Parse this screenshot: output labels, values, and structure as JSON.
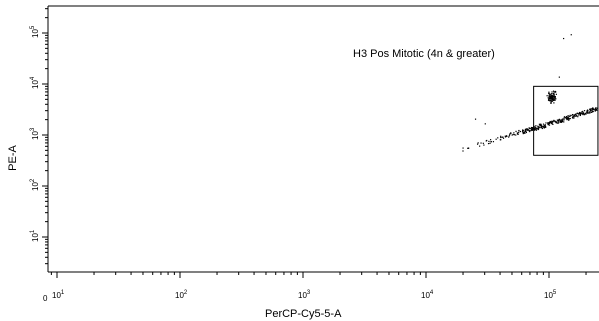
{
  "chart_data": {
    "type": "scatter",
    "xlabel": "PerCP-Cy5-5-A",
    "ylabel": "PE-A",
    "x_scale": "log",
    "y_scale": "log",
    "xlim": [
      1,
      250000
    ],
    "ylim": [
      3,
      250000
    ],
    "x_origin_label": "0",
    "x_ticks": [
      {
        "label": "10",
        "exp": "1"
      },
      {
        "label": "10",
        "exp": "2"
      },
      {
        "label": "10",
        "exp": "3"
      },
      {
        "label": "10",
        "exp": "4"
      },
      {
        "label": "10",
        "exp": "5"
      }
    ],
    "y_ticks": [
      {
        "label": "10",
        "exp": "1"
      },
      {
        "label": "10",
        "exp": "2"
      },
      {
        "label": "10",
        "exp": "3"
      },
      {
        "label": "10",
        "exp": "4"
      },
      {
        "label": "10",
        "exp": "5"
      }
    ],
    "gate": {
      "label": "H3 Pos Mitotic (4n & greater)",
      "x_range": [
        75000,
        250000
      ],
      "y_range": [
        400,
        9000
      ]
    },
    "populations": [
      {
        "x_range": [
          18000,
          250000
        ],
        "y_range": [
          500,
          3400
        ],
        "count": 260,
        "description": "diagonal band"
      },
      {
        "x": [
          95000,
          115000
        ],
        "y": [
          4000,
          7500
        ],
        "count": 90,
        "description": "dense cluster"
      }
    ],
    "outliers": [
      {
        "x": 150000,
        "y": 95000
      },
      {
        "x": 130000,
        "y": 80000
      },
      {
        "x": 120000,
        "y": 14000
      },
      {
        "x": 25000,
        "y": 2100
      },
      {
        "x": 30000,
        "y": 1700
      }
    ],
    "grid": false,
    "colors": {
      "points": "#000000",
      "axes": "#000000",
      "gate": "#000000"
    }
  }
}
